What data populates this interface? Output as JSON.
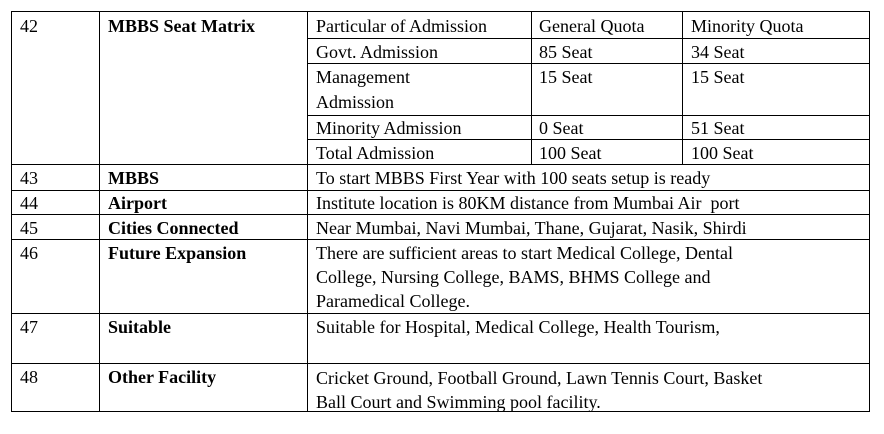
{
  "rows": [
    {
      "no": "42",
      "title": "MBBS Seat Matrix",
      "matrix": {
        "headers": [
          "Particular of Admission",
          "General Quota",
          "Minority Quota"
        ],
        "rows": [
          {
            "particular": "Govt. Admission",
            "general": "85 Seat",
            "minority": "34 Seat"
          },
          {
            "particular_lines": [
              "Management",
              "Admission"
            ],
            "general": "15 Seat",
            "minority": "15 Seat"
          },
          {
            "particular": "Minority Admission",
            "general": "0 Seat",
            "minority": "51 Seat"
          },
          {
            "particular": "Total Admission",
            "general": "100 Seat",
            "minority": "100 Seat"
          }
        ]
      }
    },
    {
      "no": "43",
      "title": "MBBS",
      "lines": [
        "To start MBBS First Year with 100 seats setup is ready"
      ]
    },
    {
      "no": "44",
      "title": "Airport",
      "lines": [
        "Institute location is 80KM distance from Mumbai Air  port"
      ]
    },
    {
      "no": "45",
      "title": "Cities Connected",
      "lines": [
        "Near Mumbai, Navi Mumbai, Thane, Gujarat, Nasik, Shirdi"
      ]
    },
    {
      "no": "46",
      "title": "Future Expansion",
      "lines": [
        "There are sufficient areas to start Medical College, Dental",
        "College, Nursing College, BAMS, BHMS College and",
        "Paramedical College."
      ]
    },
    {
      "no": "47",
      "title": "Suitable",
      "lines": [
        "Suitable for Hospital, Medical College, Health Tourism,"
      ]
    },
    {
      "no": "48",
      "title": "Other Facility",
      "lines": [
        "Cricket Ground, Football Ground, Lawn Tennis Court, Basket",
        "Ball Court and Swimming pool facility."
      ]
    }
  ]
}
